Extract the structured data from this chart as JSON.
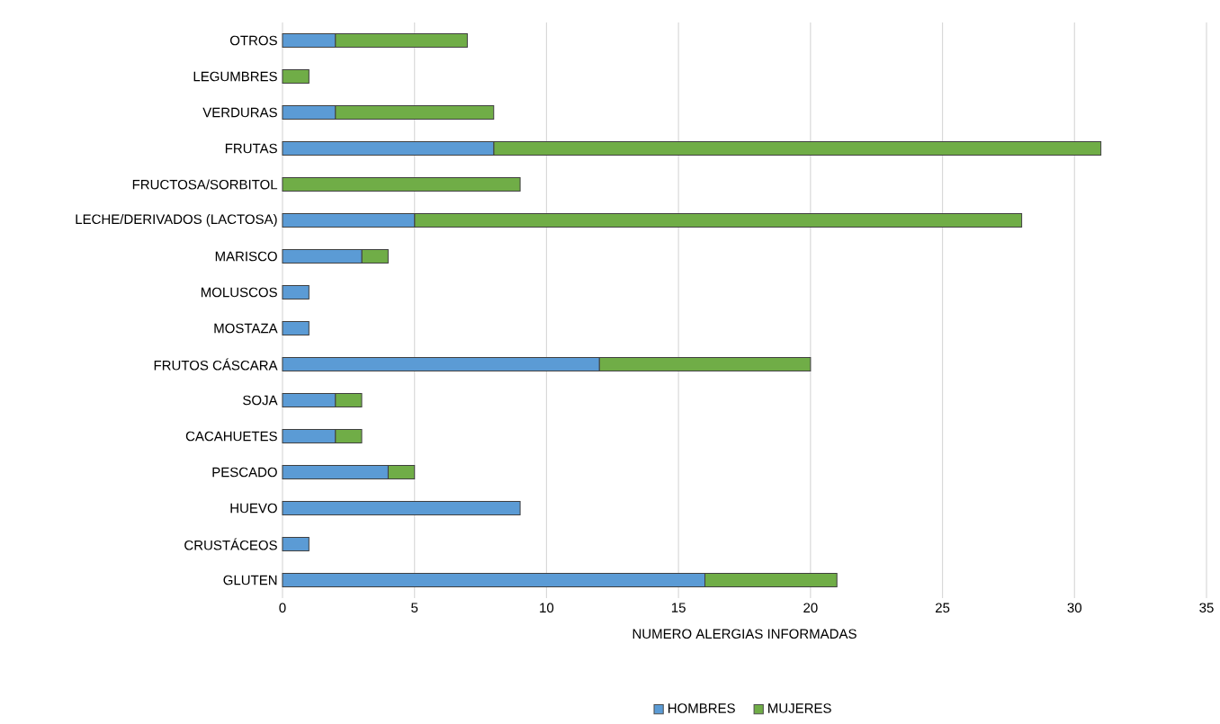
{
  "chart_data": {
    "type": "bar",
    "orientation": "horizontal",
    "stacked": true,
    "xlabel": "NUMERO ALERGIAS INFORMADAS",
    "categories": [
      "OTROS",
      "LEGUMBRES",
      "VERDURAS",
      "FRUTAS",
      "FRUCTOSA/SORBITOL",
      "LECHE/DERIVADOS (LACTOSA)",
      "MARISCO",
      "MOLUSCOS",
      "MOSTAZA",
      "FRUTOS CÁSCARA",
      "SOJA",
      "CACAHUETES",
      "PESCADO",
      "HUEVO",
      "CRUSTÁCEOS",
      "GLUTEN"
    ],
    "series": [
      {
        "name": "HOMBRES",
        "color": "#5b9bd5",
        "values": [
          2,
          0,
          2,
          8,
          0,
          5,
          3,
          1,
          1,
          12,
          2,
          2,
          4,
          9,
          1,
          16
        ]
      },
      {
        "name": "MUJERES",
        "color": "#70ad47",
        "values": [
          5,
          1,
          6,
          23,
          9,
          23,
          1,
          0,
          0,
          8,
          1,
          1,
          1,
          0,
          0,
          5
        ]
      }
    ],
    "xlim": [
      0,
      35
    ],
    "xticks": [
      0,
      5,
      10,
      15,
      20,
      25,
      30,
      35
    ],
    "grid": "x",
    "legend": "bottom"
  }
}
